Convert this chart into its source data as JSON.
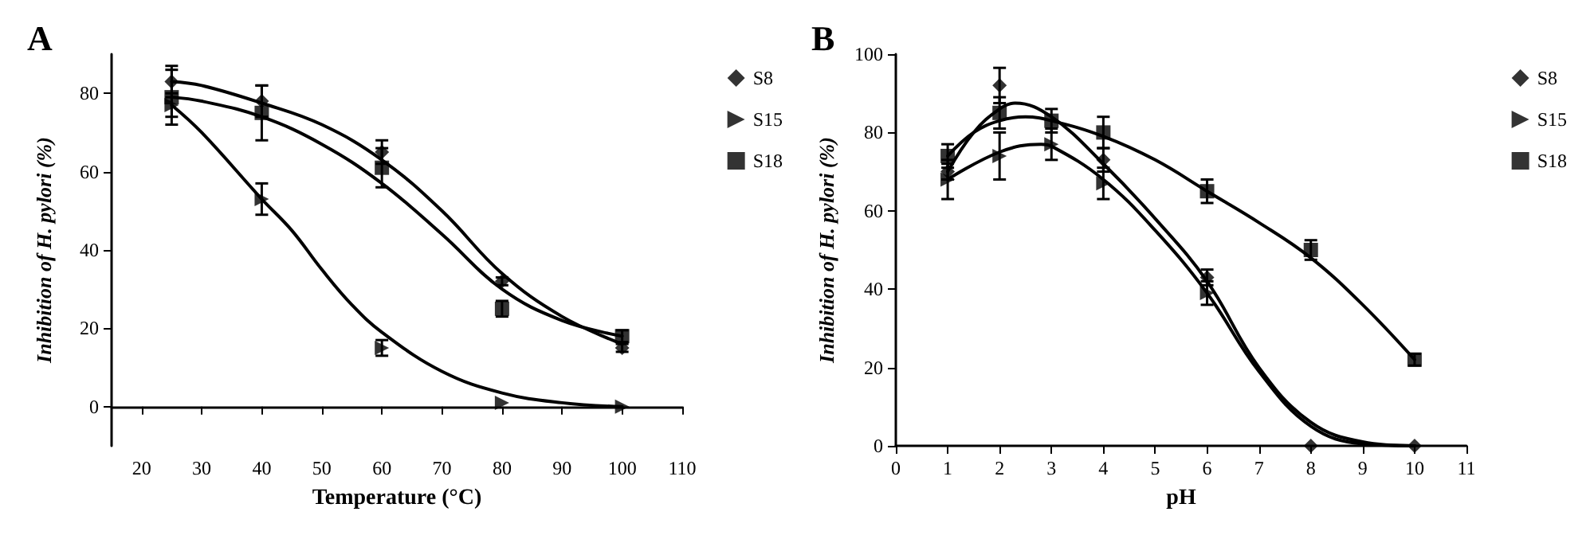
{
  "chart_data": [
    {
      "type": "scatter",
      "title": "A",
      "xlabel": "Temperature (°C)",
      "ylabel": "Inhibition of H. pylori (%)",
      "xlim": [
        15,
        110
      ],
      "xticks": [
        20,
        30,
        40,
        50,
        60,
        70,
        80,
        90,
        100,
        110
      ],
      "ylim": [
        -10,
        90
      ],
      "yticks": [
        0,
        20,
        40,
        60,
        80
      ],
      "grid": false,
      "legend": "top right",
      "line_style": "solid",
      "series": [
        {
          "name": "S8",
          "marker": "diamond",
          "color": "#000000",
          "x": [
            25,
            40,
            60,
            80,
            100
          ],
          "values": [
            83,
            78,
            65,
            32,
            15
          ],
          "errors": [
            4,
            4,
            3,
            1,
            1
          ]
        },
        {
          "name": "S15",
          "marker": "triangle",
          "color": "#000000",
          "x": [
            25,
            40,
            60,
            80,
            100
          ],
          "values": [
            77,
            53,
            15,
            1,
            0
          ],
          "errors": [
            3,
            4,
            2,
            null,
            null
          ]
        },
        {
          "name": "S18",
          "marker": "square",
          "color": "#000000",
          "x": [
            25,
            40,
            60,
            80,
            100
          ],
          "values": [
            79,
            75,
            61,
            25,
            18
          ],
          "errors": [
            7,
            7,
            5,
            2,
            1.5
          ]
        },
        {
          "type": "line",
          "marker": "none",
          "color": "#000000",
          "x": [
            25,
            30,
            40,
            50,
            60,
            70,
            80,
            90,
            100
          ],
          "values": [
            83,
            82,
            77.5,
            72,
            63,
            50,
            34,
            23,
            16
          ]
        },
        {
          "type": "line",
          "marker": "none",
          "color": "#000000",
          "x": [
            25,
            30,
            40,
            50,
            60,
            70,
            80,
            90,
            100
          ],
          "values": [
            79,
            78,
            74,
            67,
            57,
            44,
            30,
            22,
            18
          ]
        },
        {
          "type": "line",
          "marker": "none",
          "color": "#000000",
          "x": [
            25,
            30,
            40,
            45,
            50,
            55,
            60,
            70,
            80,
            90,
            100
          ],
          "values": [
            77,
            70,
            53,
            45,
            35,
            26,
            19,
            9,
            3.5,
            1,
            0
          ]
        }
      ]
    },
    {
      "type": "scatter",
      "title": "B",
      "xlabel": "pH",
      "ylabel": "Inhibition of H. pylori (%)",
      "xlim": [
        0,
        11
      ],
      "xticks": [
        0,
        1,
        2,
        3,
        4,
        5,
        6,
        7,
        8,
        9,
        10,
        11
      ],
      "ylim": [
        0,
        100
      ],
      "yticks": [
        0,
        20,
        40,
        60,
        80,
        100
      ],
      "grid": false,
      "legend": "top right",
      "line_style": "solid",
      "series": [
        {
          "name": "S8",
          "marker": "diamond",
          "color": "#000000",
          "x": [
            1,
            2,
            3,
            4,
            6,
            8,
            10
          ],
          "values": [
            70,
            92,
            null,
            73,
            43,
            0,
            0
          ],
          "errors": [
            2,
            4.5,
            null,
            3,
            2,
            null,
            null
          ]
        },
        {
          "name": "S15",
          "marker": "triangle",
          "color": "#000000",
          "x": [
            1,
            2,
            3,
            4,
            6
          ],
          "values": [
            68,
            74,
            77,
            67,
            39
          ],
          "errors": [
            5,
            6,
            4,
            4,
            3
          ]
        },
        {
          "name": "S18",
          "marker": "square",
          "color": "#000000",
          "x": [
            1,
            2,
            3,
            4,
            6,
            8,
            10
          ],
          "values": [
            74,
            85,
            83,
            80,
            65,
            50,
            22
          ],
          "errors": [
            3,
            4,
            3,
            4,
            3,
            2.5,
            1.5
          ]
        },
        {
          "type": "line",
          "marker": "none",
          "color": "#000000",
          "x": [
            1,
            1.5,
            2,
            2.3,
            3,
            4,
            5,
            6,
            7,
            8,
            9,
            10
          ],
          "values": [
            70,
            80,
            86,
            87.5,
            84,
            72,
            58,
            42,
            20,
            6,
            1,
            0
          ]
        },
        {
          "type": "line",
          "marker": "none",
          "color": "#000000",
          "x": [
            1,
            2,
            2.8,
            3,
            4,
            5,
            6,
            7,
            8,
            9,
            10
          ],
          "values": [
            68,
            75,
            77,
            76.5,
            68,
            55,
            39,
            19,
            5,
            0.5,
            0
          ]
        },
        {
          "type": "line",
          "marker": "none",
          "color": "#000000",
          "x": [
            1,
            1.5,
            2,
            2.5,
            3,
            4,
            5,
            6,
            7,
            8,
            9,
            10
          ],
          "values": [
            74,
            80,
            83,
            84,
            83,
            79,
            73,
            65,
            57,
            48,
            36,
            22
          ]
        }
      ]
    }
  ]
}
